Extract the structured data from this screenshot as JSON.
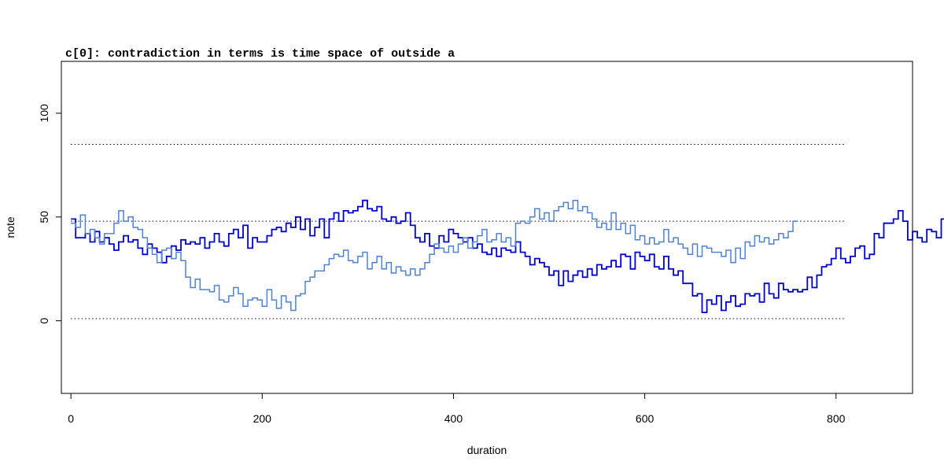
{
  "chart_data": {
    "type": "line",
    "title": "c[0]: contradiction in terms is time space of outside a",
    "xlabel": "duration",
    "ylabel": "note",
    "xlim": [
      -10,
      880
    ],
    "ylim": [
      -35,
      125
    ],
    "x_ticks": [
      "0",
      "200",
      "400",
      "600",
      "800"
    ],
    "y_ticks": [
      "0",
      "50",
      "100"
    ],
    "reference_lines": [
      1,
      48,
      85
    ],
    "reference_line_range": [
      0,
      810
    ],
    "step_duration": 5,
    "colors": {
      "dark_series": "#0000cd",
      "light_series": "#4f81d6",
      "reference": "#000000"
    },
    "series": [
      {
        "color": "#0000cd",
        "values": [
          49,
          40,
          40,
          42,
          38,
          43,
          38,
          40,
          37,
          34,
          38,
          41,
          38,
          39,
          35,
          32,
          37,
          35,
          33,
          28,
          31,
          36,
          34,
          39,
          37,
          38,
          37,
          40,
          35,
          38,
          42,
          38,
          36,
          42,
          44,
          40,
          46,
          35,
          40,
          38,
          38,
          41,
          44,
          45,
          43,
          47,
          45,
          50,
          44,
          49,
          41,
          45,
          49,
          40,
          49,
          52,
          48,
          53,
          52,
          53,
          55,
          58,
          54,
          53,
          55,
          49,
          48,
          50,
          47,
          48,
          52,
          46,
          40,
          38,
          42,
          36,
          35,
          41,
          38,
          44,
          42,
          40,
          38,
          40,
          35,
          37,
          33,
          32,
          35,
          31,
          35,
          34,
          33,
          38,
          33,
          31,
          27,
          30,
          28,
          26,
          22,
          24,
          17,
          24,
          19,
          22,
          24,
          21,
          25,
          22,
          27,
          25,
          26,
          29,
          26,
          32,
          31,
          25,
          33,
          31,
          29,
          32,
          26,
          25,
          31,
          25,
          22,
          24,
          18,
          18,
          12,
          13,
          4,
          10,
          8,
          12,
          5,
          9,
          12,
          7,
          8,
          13,
          12,
          13,
          9,
          18,
          13,
          11,
          18,
          15,
          14,
          15,
          14,
          15,
          21,
          16,
          22,
          26,
          27,
          30,
          35,
          30,
          28,
          31,
          35,
          36,
          30,
          32,
          42,
          40,
          47,
          47,
          49,
          53,
          48,
          39,
          43,
          40,
          38,
          44,
          43,
          40,
          49,
          48
        ]
      },
      {
        "color": "#4f81d6",
        "values": [
          47,
          45,
          51,
          42,
          44,
          40,
          37,
          42,
          42,
          47,
          53,
          48,
          50,
          45,
          44,
          40,
          35,
          32,
          28,
          34,
          35,
          30,
          33,
          29,
          21,
          16,
          20,
          15,
          15,
          14,
          17,
          10,
          9,
          12,
          16,
          13,
          7,
          10,
          11,
          10,
          7,
          15,
          10,
          6,
          12,
          9,
          5,
          12,
          13,
          19,
          21,
          24,
          24,
          27,
          30,
          32,
          31,
          34,
          29,
          28,
          31,
          33,
          25,
          28,
          31,
          25,
          28,
          23,
          26,
          24,
          22,
          25,
          22,
          25,
          28,
          32,
          37,
          35,
          33,
          36,
          33,
          37,
          40,
          35,
          38,
          41,
          44,
          38,
          39,
          42,
          38,
          40,
          36,
          47,
          48,
          47,
          50,
          54,
          49,
          52,
          48,
          53,
          55,
          57,
          54,
          58,
          53,
          55,
          52,
          49,
          45,
          47,
          44,
          52,
          44,
          47,
          42,
          46,
          39,
          41,
          37,
          40,
          37,
          38,
          44,
          38,
          40,
          37,
          35,
          32,
          37,
          31,
          36,
          35,
          33,
          33,
          31,
          34,
          28,
          35,
          30,
          38,
          36,
          41,
          38,
          40,
          37,
          39,
          42,
          40,
          43,
          48
        ]
      }
    ]
  }
}
